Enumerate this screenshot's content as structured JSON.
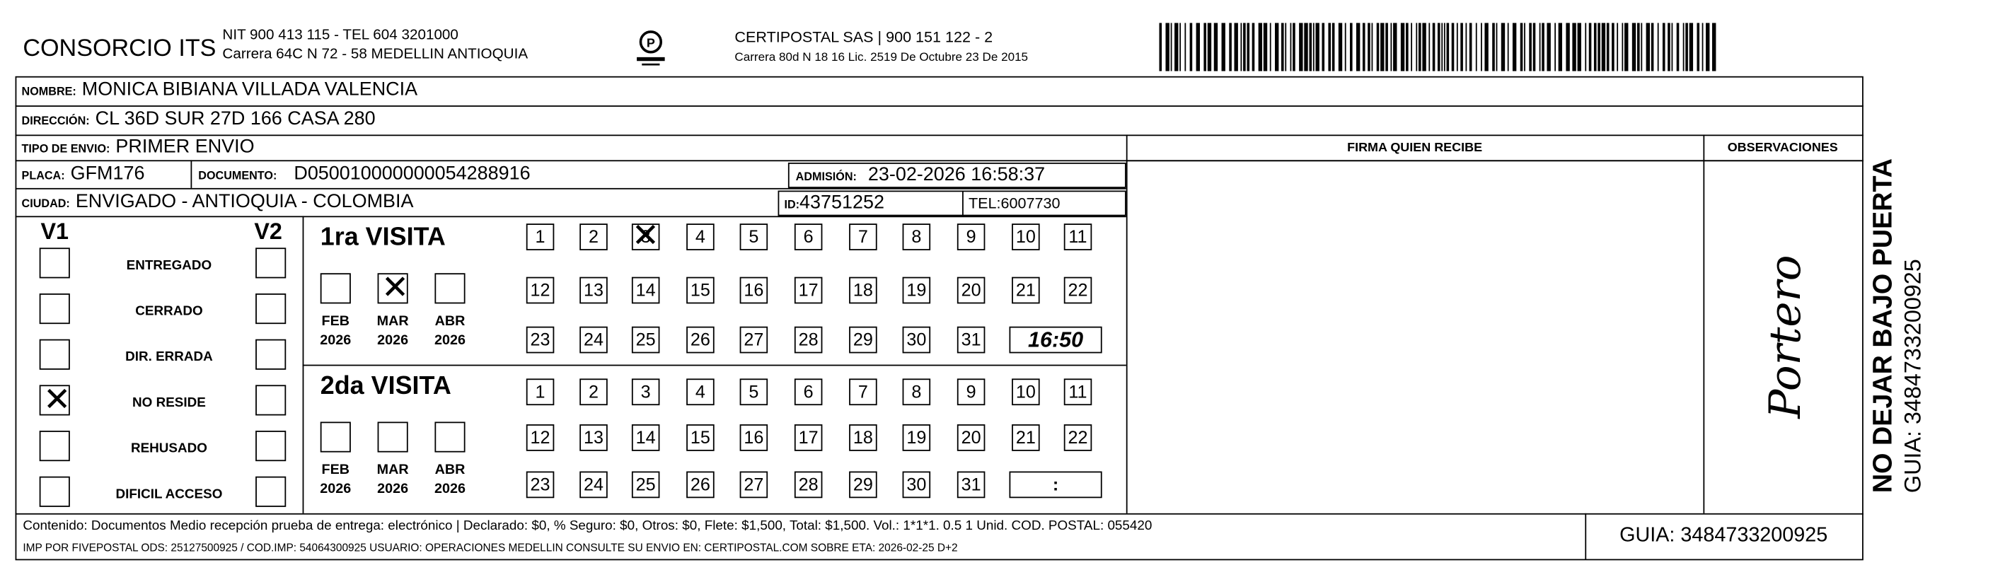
{
  "header": {
    "company": "CONSORCIO ITS",
    "company_line1": "NIT 900 413 115 - TEL 604 3201000",
    "company_line2": "Carrera 64C N 72 - 58 MEDELLIN ANTIOQUIA",
    "logo_text": "CERTIPOSTAL",
    "carrier_line1": "CERTIPOSTAL SAS | 900 151 122 - 2",
    "carrier_line2": "Carrera 80d N 18 16  Lic. 2519 De Octubre 23 De 2015"
  },
  "recipient": {
    "nombre_label": "NOMBRE:",
    "nombre": "MONICA BIBIANA VILLADA VALENCIA",
    "direccion_label": "DIRECCIÓN:",
    "direccion": "CL 36D SUR 27D 166 CASA 280",
    "tipo_label": "TIPO DE ENVIO:",
    "tipo": "PRIMER ENVIO",
    "placa_label": "PLACA:",
    "placa": "GFM176",
    "documento_label": "DOCUMENTO:",
    "documento": "D050010000000054288916",
    "admision_label": "ADMISIÓN:",
    "admision": "23-02-2026 16:58:37",
    "ciudad_label": "CIUDAD:",
    "ciudad": "ENVIGADO - ANTIOQUIA - COLOMBIA",
    "id_label": "ID:",
    "id": "43751252",
    "tel_label": "TEL:",
    "tel": "6007730"
  },
  "columns": {
    "firma": "FIRMA QUIEN RECIBE",
    "observaciones": "OBSERVACIONES",
    "observaciones_handwritten": "Portero"
  },
  "status": {
    "v1_label": "V1",
    "v2_label": "V2",
    "options": [
      "ENTREGADO",
      "CERRADO",
      "DIR. ERRADA",
      "NO RESIDE",
      "REHUSADO",
      "DIFICIL ACCESO"
    ],
    "v1_checked": "NO RESIDE"
  },
  "visits": [
    {
      "title": "1ra VISITA",
      "months": [
        {
          "m": "FEB",
          "y": "2026"
        },
        {
          "m": "MAR",
          "y": "2026"
        },
        {
          "m": "ABR",
          "y": "2026"
        }
      ],
      "checked_month": "MAR",
      "checked_day": 3,
      "time": "16:50"
    },
    {
      "title": "2da VISITA",
      "months": [
        {
          "m": "FEB",
          "y": "2026"
        },
        {
          "m": "MAR",
          "y": "2026"
        },
        {
          "m": "ABR",
          "y": "2026"
        }
      ],
      "checked_month": "",
      "checked_day": null,
      "time": ":"
    }
  ],
  "footer": {
    "line1": "Contenido: Documentos Medio recepción prueba de entrega: electrónico | Declarado: $0, % Seguro: $0, Otros: $0, Flete: $1,500, Total: $1,500. Vol.: 1*1*1. 0.5  1 Unid. COD. POSTAL: 055420",
    "line2": "IMP POR FIVEPOSTAL ODS: 25127500925 / COD.IMP: 54064300925 USUARIO: OPERACIONES MEDELLIN CONSULTE SU ENVIO EN: CERTIPOSTAL.COM SOBRE ETA: 2026-02-25 D+2",
    "guia": "GUIA: 3484733200925"
  },
  "side": {
    "warning": "NO DEJAR BAJO PUERTA",
    "guia": "GUIA: 3484733200925"
  }
}
